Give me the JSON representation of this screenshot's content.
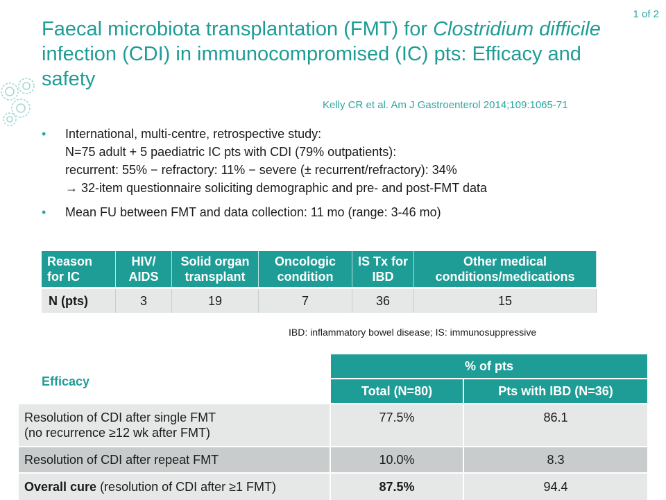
{
  "page": {
    "counter": "1 of 2"
  },
  "header": {
    "title_part1": "Faecal microbiota transplantation (FMT) for ",
    "title_italic": "Clostridium difficile",
    "title_part2": " infection (CDI) in immunocompromised (IC) pts: Efficacy and safety",
    "citation": "Kelly CR et al. Am J Gastroenterol 2014;109:1065-71"
  },
  "bullets": {
    "marker": "•",
    "item1": {
      "line1": "International, multi-centre, retrospective study:",
      "line2": "N=75 adult + 5 paediatric IC pts with CDI (79% outpatients):",
      "line3": "recurrent: 55% − refractory: 11% − severe (± recurrent/refractory): 34%",
      "line4": "→ 32-item questionnaire soliciting demographic and pre- and post-FMT data"
    },
    "item2": "Mean FU between FMT and data collection: 11 mo (range: 3-46 mo)"
  },
  "reasons_table": {
    "headers": [
      "Reason for IC",
      "HIV/ AIDS",
      "Solid organ transplant",
      "Oncologic condition",
      "IS Tx for IBD",
      "Other medical conditions/medications"
    ],
    "row": [
      "N (pts)",
      "3",
      "19",
      "7",
      "36",
      "15"
    ],
    "footnote": "IBD: inflammatory bowel disease; IS: immunosuppressive"
  },
  "efficacy": {
    "label": "Efficacy",
    "group_header": "% of pts",
    "col_total": "Total (N=80)",
    "col_ibd": "Pts with IBD (N=36)",
    "rows": [
      {
        "label_line1": "Resolution of CDI after single FMT",
        "label_line2": "(no recurrence ≥12 wk after FMT)",
        "total": "77.5%",
        "ibd": "86.1"
      },
      {
        "label": "Resolution of CDI after repeat FMT",
        "total": "10.0%",
        "ibd": "8.3"
      },
      {
        "label_bold": "Overall cure",
        "label_rest": " (resolution of CDI after ≥1 FMT)",
        "total": "87.5%",
        "ibd": "94.4"
      }
    ]
  },
  "colors": {
    "accent": "#1e9c96",
    "light": "#2aa7a0",
    "row_light": "#e6e8e8",
    "row_dark": "#c9cccd"
  }
}
